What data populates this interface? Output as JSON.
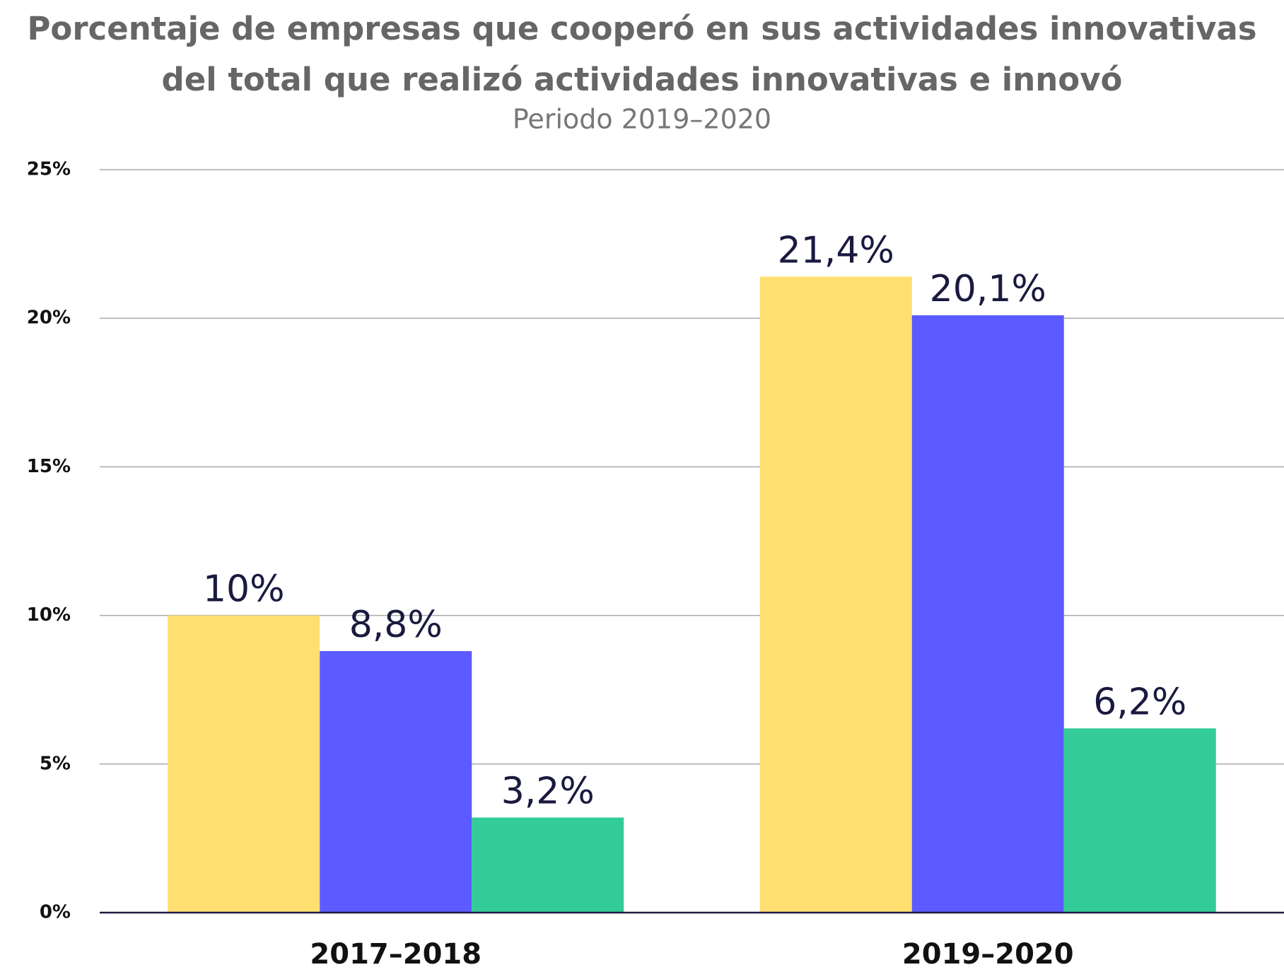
{
  "chart_data": {
    "type": "bar",
    "title": [
      "Porcentaje de empresas que cooperó en sus actividades innovativas",
      "del total que realizó actividades innovativas e innovó"
    ],
    "subtitle": "Periodo 2019–2020",
    "categories": [
      "2017–2018",
      "2019–2020"
    ],
    "series": [
      {
        "color": "#ffdf70",
        "values": [
          10,
          21.4
        ],
        "value_labels": [
          "10%",
          "21,4%"
        ]
      },
      {
        "color": "#5b5bff",
        "values": [
          8.8,
          20.1
        ],
        "value_labels": [
          "8,8%",
          "20,1%"
        ]
      },
      {
        "color": "#33cc99",
        "values": [
          3.2,
          6.2
        ],
        "value_labels": [
          "3,2%",
          "6,2%"
        ]
      }
    ],
    "ylim": [
      0,
      25
    ],
    "yticks": [
      {
        "value": 0,
        "label": "0%"
      },
      {
        "value": 5,
        "label": "5%"
      },
      {
        "value": 10,
        "label": "10%"
      },
      {
        "value": 15,
        "label": "15%"
      },
      {
        "value": 20,
        "label": "20%"
      },
      {
        "value": 25,
        "label": "25%"
      }
    ],
    "grid": true
  }
}
